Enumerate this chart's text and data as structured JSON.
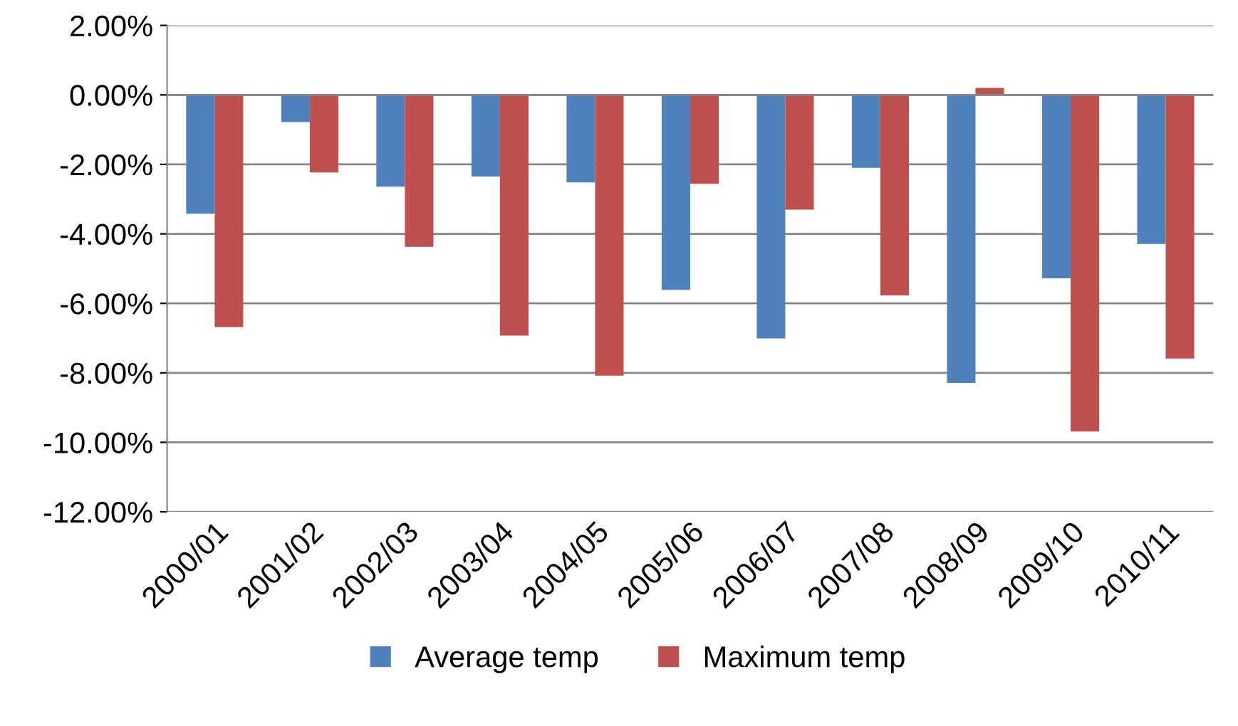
{
  "chart_data": {
    "type": "bar",
    "categories": [
      "2000/01",
      "2001/02",
      "2002/03",
      "2003/04",
      "2004/05",
      "2005/06",
      "2006/07",
      "2007/08",
      "2008/09",
      "2009/10",
      "2010/11"
    ],
    "series": [
      {
        "name": "Average temp",
        "color": "#4f81bd",
        "values": [
          -3.42,
          -0.78,
          -2.64,
          -2.35,
          -2.52,
          -5.61,
          -7.01,
          -2.1,
          -8.29,
          -5.28,
          -4.29
        ]
      },
      {
        "name": "Maximum temp",
        "color": "#c0504d",
        "values": [
          -6.68,
          -2.23,
          -4.37,
          -6.93,
          -8.08,
          -2.56,
          -3.3,
          -5.77,
          0.2,
          -9.69,
          -7.59
        ]
      }
    ],
    "ylim": [
      -12,
      2
    ],
    "yticks": [
      {
        "value": -12,
        "label": "-12.00%"
      },
      {
        "value": -10,
        "label": "-10.00%"
      },
      {
        "value": -8,
        "label": "-8.00%"
      },
      {
        "value": -6,
        "label": "-6.00%"
      },
      {
        "value": -4,
        "label": "-4.00%"
      },
      {
        "value": -2,
        "label": "-2.00%"
      },
      {
        "value": 0,
        "label": "0.00%"
      },
      {
        "value": 2,
        "label": "2.00%"
      }
    ],
    "grid": "y",
    "legend": "bottom"
  }
}
